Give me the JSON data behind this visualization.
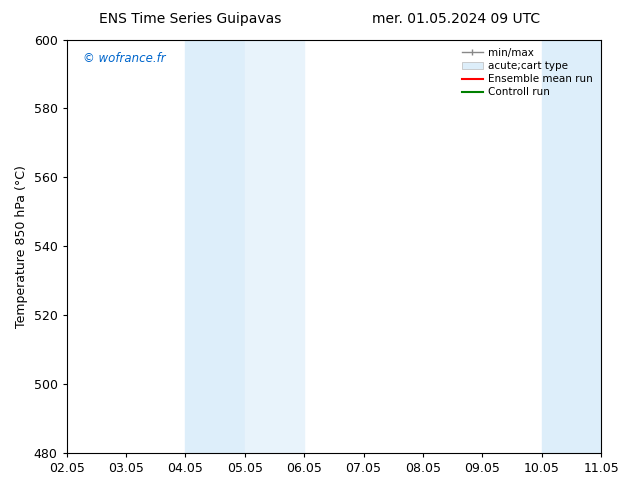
{
  "title_left": "ENS Time Series Guipavas",
  "title_right": "mer. 01.05.2024 09 UTC",
  "ylabel": "Temperature 850 hPa (°C)",
  "ylim": [
    480,
    600
  ],
  "yticks": [
    480,
    500,
    520,
    540,
    560,
    580,
    600
  ],
  "xtick_labels": [
    "02.05",
    "03.05",
    "04.05",
    "05.05",
    "06.05",
    "07.05",
    "08.05",
    "09.05",
    "10.05",
    "11.05"
  ],
  "xlim": [
    0,
    9
  ],
  "shaded_bands": [
    {
      "x_start": 2.0,
      "x_end": 3.0
    },
    {
      "x_start": 3.0,
      "x_end": 4.0
    },
    {
      "x_start": 8.0,
      "x_end": 9.0
    }
  ],
  "shaded_colors": [
    "#ddeefa",
    "#e8f3fb",
    "#ddeefa"
  ],
  "background_color": "#ffffff",
  "watermark_text": "© wofrance.fr",
  "watermark_color": "#0066cc",
  "legend_entries": [
    {
      "label": "min/max",
      "color": "#888888",
      "lw": 1.0
    },
    {
      "label": "acute;cart type",
      "color": "#cccccc",
      "lw": 4.0
    },
    {
      "label": "Ensemble mean run",
      "color": "#ff0000",
      "lw": 1.5
    },
    {
      "label": "Controll run",
      "color": "#008000",
      "lw": 1.5
    }
  ],
  "spine_color": "#000000",
  "tick_color": "#000000",
  "font_size": 9,
  "title_font_size": 10,
  "legend_font_size": 7.5
}
